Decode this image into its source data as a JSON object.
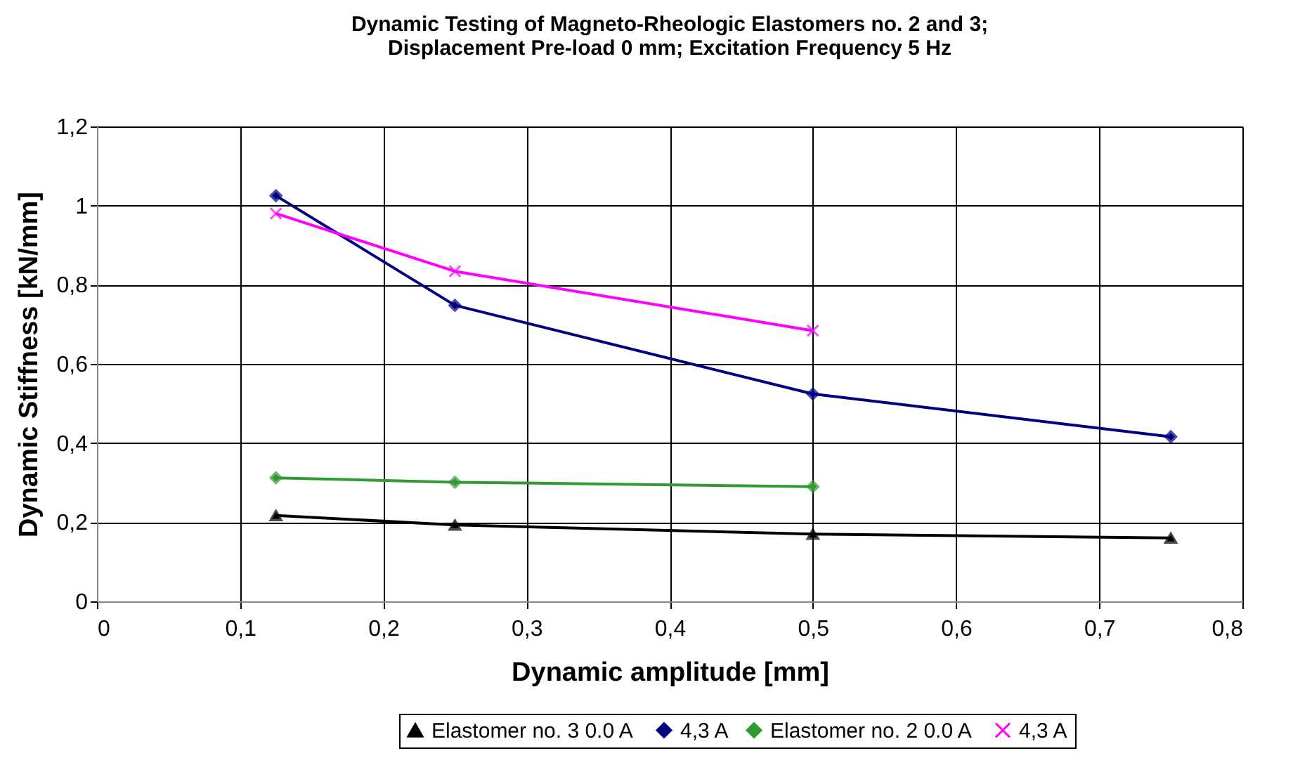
{
  "chart_data": {
    "type": "line",
    "title": "Dynamic Testing of Magneto-Rheologic Elastomers no. 2 and 3;\nDisplacement Pre-load 0 mm; Excitation Frequency 5 Hz",
    "xlabel": "Dynamic amplitude [mm]",
    "ylabel": "Dynamic Stiffness [kN/mm]",
    "xlim": [
      0,
      0.8
    ],
    "ylim": [
      0,
      1.2
    ],
    "xticks": [
      0,
      {
        "value": 0.1,
        "label": "0,1"
      },
      {
        "value": 0.2,
        "label": "0,2"
      },
      {
        "value": 0.3,
        "label": "0,3"
      },
      {
        "value": 0.4,
        "label": "0,4"
      },
      {
        "value": 0.5,
        "label": "0,5"
      },
      {
        "value": 0.6,
        "label": "0,6"
      },
      {
        "value": 0.7,
        "label": "0,7"
      },
      {
        "value": 0.8,
        "label": "0,8"
      }
    ],
    "yticks": [
      0,
      {
        "value": 0.2,
        "label": "0,2"
      },
      {
        "value": 0.4,
        "label": "0,4"
      },
      {
        "value": 0.6,
        "label": "0,6"
      },
      {
        "value": 0.8,
        "label": "0,8"
      },
      1,
      {
        "value": 1.2,
        "label": "1,2"
      }
    ],
    "grid": true,
    "legend": "bottom",
    "series": [
      {
        "name": "Elastomer no. 3  0.0 A",
        "color": "#000000",
        "marker": "triangle",
        "x": [
          0.125,
          0.25,
          0.5,
          0.75
        ],
        "values": [
          0.217,
          0.193,
          0.17,
          0.16
        ]
      },
      {
        "name": "4,3 A",
        "color": "#000080",
        "marker": "diamond",
        "x": [
          0.125,
          0.25,
          0.5,
          0.75
        ],
        "values": [
          1.025,
          0.748,
          0.524,
          0.416
        ]
      },
      {
        "name": "Elastomer no. 2  0.0 A",
        "color": "#339933",
        "marker": "diamond",
        "x": [
          0.125,
          0.25,
          0.5
        ],
        "values": [
          0.312,
          0.301,
          0.29
        ]
      },
      {
        "name": "4,3 A",
        "color": "#ff00ff",
        "marker": "cross",
        "x": [
          0.125,
          0.25,
          0.5
        ],
        "values": [
          0.98,
          0.834,
          0.684
        ]
      }
    ]
  }
}
